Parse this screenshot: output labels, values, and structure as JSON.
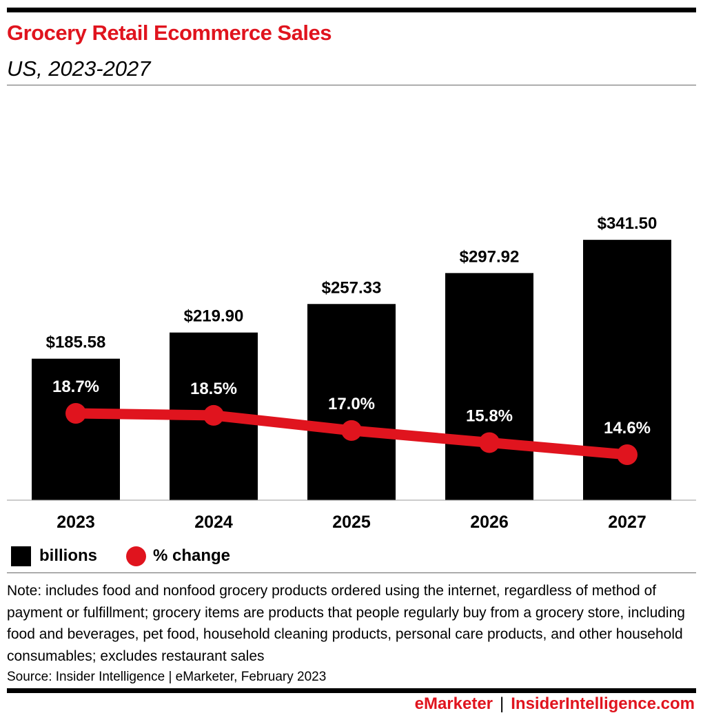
{
  "header": {
    "title": "Grocery Retail Ecommerce Sales",
    "subtitle": "US, 2023-2027"
  },
  "legend": {
    "bar_label": "billions",
    "line_label": "% change"
  },
  "footer": {
    "note": "Note: includes food and nonfood grocery products ordered using the internet, regardless of method of payment or fulfillment; grocery items are products that people regularly buy from a grocery store, including food and beverages, pet food, household cleaning products, personal care products, and other household consumables; excludes restaurant sales",
    "source": "Source: Insider Intelligence | eMarketer, February 2023",
    "brand_left": "eMarketer",
    "brand_sep": "|",
    "brand_right": "InsiderIntelligence.com"
  },
  "colors": {
    "accent": "#e0141e",
    "bar": "#000000"
  },
  "chart_data": {
    "type": "bar",
    "categories": [
      "2023",
      "2024",
      "2025",
      "2026",
      "2027"
    ],
    "series": [
      {
        "name": "billions",
        "type": "bar",
        "values": [
          185.58,
          219.9,
          257.33,
          297.92,
          341.5
        ],
        "labels": [
          "$185.58",
          "$219.90",
          "$257.33",
          "$297.92",
          "$341.50"
        ]
      },
      {
        "name": "% change",
        "type": "line",
        "values": [
          18.7,
          18.5,
          17.0,
          15.8,
          14.6
        ],
        "labels": [
          "18.7%",
          "18.5%",
          "17.0%",
          "15.8%",
          "14.6%"
        ]
      }
    ],
    "title": "Grocery Retail Ecommerce Sales",
    "subtitle": "US, 2023-2027",
    "xlabel": "",
    "ylabel": "",
    "grid": false,
    "legend_position": "bottom-left"
  }
}
